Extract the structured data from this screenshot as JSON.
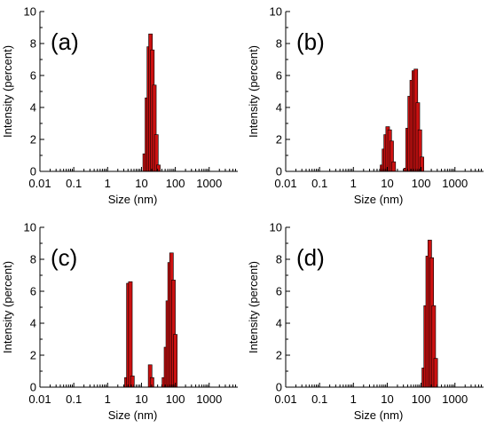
{
  "figure": {
    "bar_color": "#cc1111",
    "bar_edge_color": "#000000"
  },
  "chart_data": [
    {
      "type": "bar",
      "panel_label": "(a)",
      "xlabel": "Size (nm)",
      "ylabel": "Intensity (percent)",
      "xscale": "log",
      "xlim": [
        0.01,
        7000
      ],
      "ylim": [
        0,
        10
      ],
      "xticks": [
        0.01,
        0.1,
        1,
        10,
        100,
        1000
      ],
      "xtick_labels": [
        "0.01",
        "0.1",
        "1",
        "10",
        "100",
        "1000"
      ],
      "yticks": [
        0,
        2,
        4,
        6,
        8,
        10
      ],
      "ytick_labels": [
        "0",
        "2",
        "4",
        "6",
        "8",
        "10"
      ],
      "grid": false,
      "bars": [
        {
          "size": 12.5,
          "value": 1.1
        },
        {
          "size": 14.5,
          "value": 4.6
        },
        {
          "size": 16.5,
          "value": 7.8
        },
        {
          "size": 18.5,
          "value": 8.6
        },
        {
          "size": 21.0,
          "value": 7.6
        },
        {
          "size": 24.0,
          "value": 5.4
        },
        {
          "size": 27.5,
          "value": 2.3
        },
        {
          "size": 31.5,
          "value": 0.4
        }
      ]
    },
    {
      "type": "bar",
      "panel_label": "(b)",
      "xlabel": "Size (nm)",
      "ylabel": "Intensity (percent)",
      "xscale": "log",
      "xlim": [
        0.01,
        7000
      ],
      "ylim": [
        0,
        10
      ],
      "xticks": [
        0.01,
        0.1,
        1,
        10,
        100,
        1000
      ],
      "xtick_labels": [
        "0.01",
        "0.1",
        "1",
        "10",
        "100",
        "1000"
      ],
      "yticks": [
        0,
        2,
        4,
        6,
        8,
        10
      ],
      "ytick_labels": [
        "0",
        "2",
        "4",
        "6",
        "8",
        "10"
      ],
      "grid": false,
      "bars": [
        {
          "size": 7.0,
          "value": 0.4
        },
        {
          "size": 8.0,
          "value": 1.4
        },
        {
          "size": 9.0,
          "value": 2.3
        },
        {
          "size": 10.3,
          "value": 2.8
        },
        {
          "size": 11.8,
          "value": 2.6
        },
        {
          "size": 13.5,
          "value": 1.9
        },
        {
          "size": 15.5,
          "value": 0.6
        },
        {
          "size": 35.0,
          "value": 0.2
        },
        {
          "size": 40.0,
          "value": 2.7
        },
        {
          "size": 46.0,
          "value": 4.7
        },
        {
          "size": 53.0,
          "value": 5.7
        },
        {
          "size": 61.0,
          "value": 6.3
        },
        {
          "size": 70.0,
          "value": 6.4
        },
        {
          "size": 80.0,
          "value": 4.3
        },
        {
          "size": 92.0,
          "value": 2.6
        },
        {
          "size": 106.0,
          "value": 0.9
        }
      ]
    },
    {
      "type": "bar",
      "panel_label": "(c)",
      "xlabel": "Size (nm)",
      "ylabel": "Intensity (percent)",
      "xscale": "log",
      "xlim": [
        0.01,
        7000
      ],
      "ylim": [
        0,
        10
      ],
      "xticks": [
        0.01,
        0.1,
        1,
        10,
        100,
        1000
      ],
      "xtick_labels": [
        "0.01",
        "0.1",
        "1",
        "10",
        "100",
        "1000"
      ],
      "yticks": [
        0,
        2,
        4,
        6,
        8,
        10
      ],
      "ytick_labels": [
        "0",
        "2",
        "4",
        "6",
        "8",
        "10"
      ],
      "grid": false,
      "bars": [
        {
          "size": 3.6,
          "value": 0.6
        },
        {
          "size": 4.1,
          "value": 6.5
        },
        {
          "size": 4.7,
          "value": 6.6
        },
        {
          "size": 5.4,
          "value": 0.7
        },
        {
          "size": 18.0,
          "value": 1.4
        },
        {
          "size": 20.5,
          "value": 0.6
        },
        {
          "size": 46.0,
          "value": 0.6
        },
        {
          "size": 53.0,
          "value": 2.5
        },
        {
          "size": 60.0,
          "value": 5.4
        },
        {
          "size": 68.0,
          "value": 7.8
        },
        {
          "size": 77.0,
          "value": 8.4
        },
        {
          "size": 88.0,
          "value": 6.7
        },
        {
          "size": 100.0,
          "value": 3.3
        }
      ]
    },
    {
      "type": "bar",
      "panel_label": "(d)",
      "xlabel": "Size (nm)",
      "ylabel": "Intensity (percent)",
      "xscale": "log",
      "xlim": [
        0.01,
        7000
      ],
      "ylim": [
        0,
        10
      ],
      "xticks": [
        0.01,
        0.1,
        1,
        10,
        100,
        1000
      ],
      "xtick_labels": [
        "0.01",
        "0.1",
        "1",
        "10",
        "100",
        "1000"
      ],
      "yticks": [
        0,
        2,
        4,
        6,
        8,
        10
      ],
      "ytick_labels": [
        "0",
        "2",
        "4",
        "6",
        "8",
        "10"
      ],
      "grid": false,
      "bars": [
        {
          "size": 120.0,
          "value": 1.2
        },
        {
          "size": 137.0,
          "value": 5.1
        },
        {
          "size": 157.0,
          "value": 8.2
        },
        {
          "size": 180.0,
          "value": 9.2
        },
        {
          "size": 206.0,
          "value": 8.1
        },
        {
          "size": 236.0,
          "value": 5.1
        },
        {
          "size": 270.0,
          "value": 1.8
        }
      ]
    }
  ]
}
